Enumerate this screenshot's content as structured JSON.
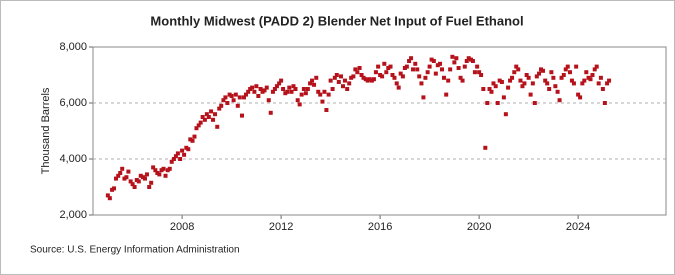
{
  "chart_data": {
    "type": "scatter",
    "title": "Monthly Midwest (PADD 2) Blender Net Input of Fuel Ethanol",
    "y_label": "Thousand Barrels",
    "source": "Source: U.S. Energy Information Administration",
    "color": "#b5121b",
    "grid": true,
    "xlim": [
      2004.4,
      2027.55
    ],
    "xticks": [
      2008,
      2012,
      2016,
      2020,
      2024
    ],
    "ylim": [
      2000,
      8000
    ],
    "yticks": [
      {
        "value": 2000,
        "label": "2,000"
      },
      {
        "value": 4000,
        "label": "4,000"
      },
      {
        "value": 6000,
        "label": "6,000"
      },
      {
        "value": 8000,
        "label": "8,000"
      }
    ],
    "x": [
      2005.0,
      2005.08,
      2005.17,
      2005.25,
      2005.33,
      2005.42,
      2005.5,
      2005.58,
      2005.67,
      2005.75,
      2005.83,
      2005.92,
      2006.0,
      2006.08,
      2006.17,
      2006.25,
      2006.33,
      2006.42,
      2006.5,
      2006.58,
      2006.67,
      2006.75,
      2006.83,
      2006.92,
      2007.0,
      2007.08,
      2007.17,
      2007.25,
      2007.33,
      2007.42,
      2007.5,
      2007.58,
      2007.67,
      2007.75,
      2007.83,
      2007.92,
      2008.0,
      2008.08,
      2008.17,
      2008.25,
      2008.33,
      2008.42,
      2008.5,
      2008.58,
      2008.67,
      2008.75,
      2008.83,
      2008.92,
      2009.0,
      2009.08,
      2009.17,
      2009.25,
      2009.33,
      2009.42,
      2009.5,
      2009.58,
      2009.67,
      2009.75,
      2009.83,
      2009.92,
      2010.0,
      2010.08,
      2010.17,
      2010.25,
      2010.33,
      2010.42,
      2010.5,
      2010.58,
      2010.67,
      2010.75,
      2010.83,
      2010.92,
      2011.0,
      2011.08,
      2011.17,
      2011.25,
      2011.33,
      2011.42,
      2011.5,
      2011.58,
      2011.67,
      2011.75,
      2011.83,
      2011.92,
      2012.0,
      2012.08,
      2012.17,
      2012.25,
      2012.33,
      2012.42,
      2012.5,
      2012.58,
      2012.67,
      2012.75,
      2012.83,
      2012.92,
      2013.0,
      2013.08,
      2013.17,
      2013.25,
      2013.33,
      2013.42,
      2013.5,
      2013.58,
      2013.67,
      2013.75,
      2013.83,
      2013.92,
      2014.0,
      2014.08,
      2014.17,
      2014.25,
      2014.33,
      2014.42,
      2014.5,
      2014.58,
      2014.67,
      2014.75,
      2014.83,
      2014.92,
      2015.0,
      2015.08,
      2015.17,
      2015.25,
      2015.33,
      2015.42,
      2015.5,
      2015.58,
      2015.67,
      2015.75,
      2015.83,
      2015.92,
      2016.0,
      2016.08,
      2016.17,
      2016.25,
      2016.33,
      2016.42,
      2016.5,
      2016.58,
      2016.67,
      2016.75,
      2016.83,
      2016.92,
      2017.0,
      2017.08,
      2017.17,
      2017.25,
      2017.33,
      2017.42,
      2017.5,
      2017.58,
      2017.67,
      2017.75,
      2017.83,
      2017.92,
      2018.0,
      2018.08,
      2018.17,
      2018.25,
      2018.33,
      2018.42,
      2018.5,
      2018.58,
      2018.67,
      2018.75,
      2018.83,
      2018.92,
      2019.0,
      2019.08,
      2019.17,
      2019.25,
      2019.33,
      2019.42,
      2019.5,
      2019.58,
      2019.67,
      2019.75,
      2019.83,
      2019.92,
      2020.0,
      2020.08,
      2020.17,
      2020.25,
      2020.33,
      2020.42,
      2020.5,
      2020.58,
      2020.67,
      2020.75,
      2020.83,
      2020.92,
      2021.0,
      2021.08,
      2021.17,
      2021.25,
      2021.33,
      2021.42,
      2021.5,
      2021.58,
      2021.67,
      2021.75,
      2021.83,
      2021.92,
      2022.0,
      2022.08,
      2022.17,
      2022.25,
      2022.33,
      2022.42,
      2022.5,
      2022.58,
      2022.67,
      2022.75,
      2022.83,
      2022.92,
      2023.0,
      2023.08,
      2023.17,
      2023.25,
      2023.33,
      2023.42,
      2023.5,
      2023.58,
      2023.67,
      2023.75,
      2023.83,
      2023.92,
      2024.0,
      2024.08,
      2024.17,
      2024.25,
      2024.33,
      2024.42,
      2024.5,
      2024.58,
      2024.67,
      2024.75,
      2024.83,
      2024.92,
      2025.0,
      2025.08,
      2025.17,
      2025.25
    ],
    "values": [
      2700,
      2600,
      2900,
      2950,
      3300,
      3400,
      3500,
      3650,
      3300,
      3350,
      3550,
      3200,
      3100,
      3000,
      3250,
      3200,
      3400,
      3350,
      3300,
      3450,
      3000,
      3150,
      3700,
      3600,
      3500,
      3450,
      3600,
      3650,
      3400,
      3600,
      3650,
      3900,
      4000,
      4100,
      4200,
      4000,
      4300,
      4150,
      4400,
      4350,
      4700,
      4650,
      4800,
      5100,
      5200,
      5300,
      5500,
      5400,
      5600,
      5500,
      5700,
      5400,
      5600,
      5150,
      5800,
      5900,
      6100,
      6200,
      6000,
      6300,
      6250,
      6100,
      6300,
      5900,
      6200,
      5550,
      6200,
      6300,
      6400,
      6500,
      6550,
      6400,
      6600,
      6250,
      6500,
      6400,
      6450,
      6550,
      6100,
      5650,
      6400,
      6500,
      6600,
      6700,
      6800,
      6500,
      6350,
      6400,
      6550,
      6400,
      6600,
      6500,
      6100,
      5950,
      6300,
      6500,
      6350,
      6500,
      6700,
      6800,
      6650,
      6900,
      6400,
      6300,
      6050,
      6400,
      5750,
      6300,
      6800,
      6500,
      6900,
      7000,
      6750,
      6950,
      6600,
      6800,
      6500,
      6700,
      6900,
      6950,
      7200,
      7100,
      7250,
      7000,
      6900,
      6850,
      6800,
      6850,
      6800,
      6850,
      7100,
      7300,
      7000,
      6950,
      7400,
      7100,
      7250,
      7300,
      7000,
      6900,
      6700,
      6550,
      7050,
      6950,
      7250,
      7300,
      7500,
      7600,
      7200,
      7400,
      7200,
      6950,
      6700,
      6200,
      6900,
      7100,
      7300,
      7550,
      7500,
      7050,
      7350,
      7400,
      7200,
      6900,
      6300,
      6800,
      7200,
      7650,
      7450,
      7600,
      7250,
      6900,
      6800,
      7300,
      7500,
      7600,
      7550,
      7500,
      7100,
      7300,
      7100,
      7000,
      6500,
      4400,
      6000,
      6500,
      6400,
      6700,
      6600,
      6000,
      6800,
      6750,
      6200,
      5600,
      6550,
      6800,
      6900,
      7100,
      7300,
      7200,
      6800,
      6600,
      6700,
      7000,
      6900,
      6300,
      6700,
      6000,
      6950,
      7050,
      7200,
      7150,
      6800,
      6700,
      6500,
      7100,
      6900,
      6600,
      6400,
      6100,
      6900,
      7000,
      7200,
      7300,
      7100,
      6800,
      6700,
      7300,
      6300,
      6200,
      6700,
      6800,
      7100,
      6900,
      6850,
      7000,
      7200,
      7300,
      6700,
      6900,
      6500,
      6000,
      6700,
      6800
    ]
  }
}
